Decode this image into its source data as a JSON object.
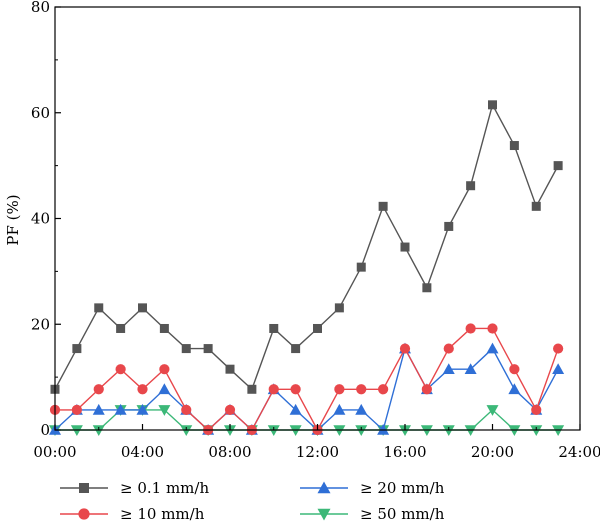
{
  "chart_data": {
    "type": "line",
    "title": "",
    "xlabel": "",
    "ylabel": "PF (%)",
    "xlim": [
      0,
      24
    ],
    "ylim": [
      0,
      80
    ],
    "x_ticks": [
      0,
      4,
      8,
      12,
      16,
      20,
      24
    ],
    "x_tick_labels": [
      "00:00",
      "04:00",
      "08:00",
      "12:00",
      "16:00",
      "20:00",
      "24:00"
    ],
    "y_ticks": [
      0,
      20,
      40,
      60,
      80
    ],
    "y_tick_labels": [
      "0",
      "20",
      "40",
      "60",
      "80"
    ],
    "grid": false,
    "legend_position": "bottom",
    "x": [
      0,
      1,
      2,
      3,
      4,
      5,
      6,
      7,
      8,
      9,
      10,
      11,
      12,
      13,
      14,
      15,
      16,
      17,
      18,
      19,
      20,
      21,
      22,
      23
    ],
    "series": [
      {
        "name": "≥ 0.1 mm/h",
        "color": "#555555",
        "marker": "square",
        "values": [
          7.7,
          15.4,
          23.1,
          19.2,
          23.1,
          19.2,
          15.4,
          15.4,
          11.5,
          7.7,
          19.2,
          15.4,
          19.2,
          23.1,
          30.8,
          42.3,
          34.6,
          26.9,
          38.5,
          46.2,
          61.5,
          53.8,
          42.3,
          50.0
        ]
      },
      {
        "name": "≥ 10 mm/h",
        "color": "#e8474b",
        "marker": "circle",
        "values": [
          3.8,
          3.8,
          7.7,
          11.5,
          7.7,
          11.5,
          3.8,
          0,
          3.8,
          0,
          7.7,
          7.7,
          0,
          7.7,
          7.7,
          7.7,
          15.4,
          7.7,
          15.4,
          19.2,
          19.2,
          11.5,
          3.8,
          15.4
        ]
      },
      {
        "name": "≥ 20 mm/h",
        "color": "#2f6fd6",
        "marker": "triangle-up",
        "values": [
          0,
          3.8,
          3.8,
          3.8,
          3.8,
          7.7,
          3.8,
          0,
          3.8,
          0,
          7.7,
          3.8,
          0,
          3.8,
          3.8,
          0,
          15.4,
          7.7,
          11.5,
          11.5,
          15.4,
          7.7,
          3.8,
          11.5
        ]
      },
      {
        "name": "≥ 50 mm/h",
        "color": "#3cb878",
        "marker": "triangle-down",
        "values": [
          0,
          0,
          0,
          3.8,
          3.8,
          3.8,
          0,
          0,
          0,
          0,
          0,
          0,
          0,
          0,
          0,
          0,
          0,
          0,
          0,
          0,
          3.8,
          0,
          0,
          0
        ]
      }
    ]
  }
}
